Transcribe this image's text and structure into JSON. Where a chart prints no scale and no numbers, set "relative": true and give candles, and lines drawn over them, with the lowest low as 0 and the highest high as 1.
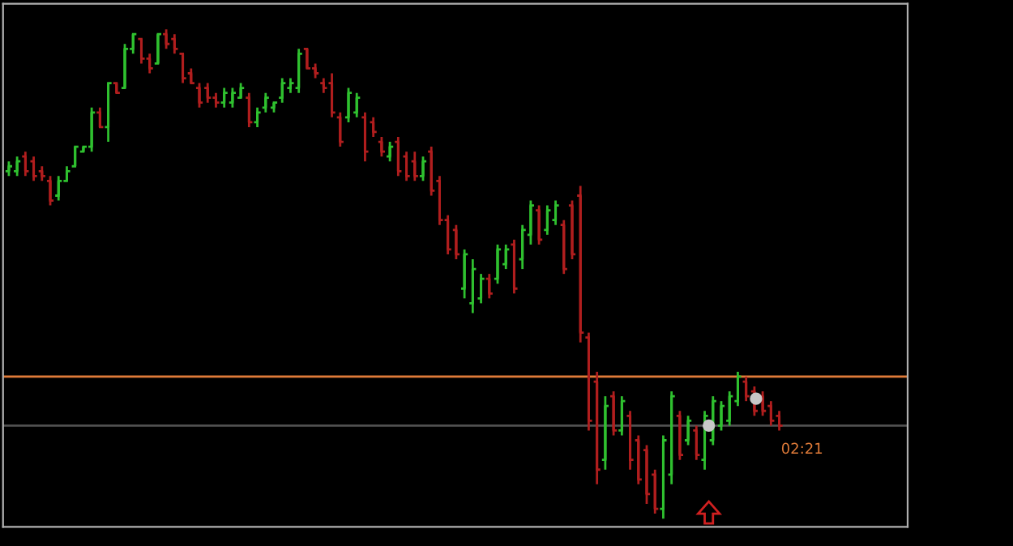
{
  "chart_data": {
    "type": "candlestick",
    "relative": true,
    "grid": false,
    "categories": [
      null,
      null,
      null,
      null,
      null,
      null,
      null,
      null,
      null,
      null,
      null,
      null,
      null,
      null,
      null,
      null,
      null,
      null,
      null,
      null,
      null,
      null,
      null,
      null,
      null,
      null,
      null,
      null,
      null,
      null,
      null,
      null,
      null,
      null,
      null,
      null,
      null,
      null,
      null,
      null,
      null,
      null,
      null,
      null,
      null,
      null,
      null,
      null,
      null,
      null,
      null,
      null,
      null,
      null,
      null,
      null,
      null,
      null,
      null,
      null,
      null,
      null,
      null,
      null,
      null,
      null,
      null,
      null,
      null,
      null,
      null,
      null,
      null,
      null,
      null,
      null,
      null,
      null,
      null,
      null,
      null,
      null,
      null,
      null,
      null,
      null,
      null,
      null,
      null,
      null,
      null,
      null,
      null,
      null
    ],
    "ohlc": [
      [
        0.71,
        0.73,
        0.7,
        0.72
      ],
      [
        0.71,
        0.74,
        0.7,
        0.73
      ],
      [
        0.74,
        0.75,
        0.7,
        0.71
      ],
      [
        0.73,
        0.74,
        0.69,
        0.7
      ],
      [
        0.71,
        0.72,
        0.69,
        0.7
      ],
      [
        0.69,
        0.7,
        0.64,
        0.65
      ],
      [
        0.66,
        0.7,
        0.65,
        0.69
      ],
      [
        0.69,
        0.72,
        0.69,
        0.71
      ],
      [
        0.72,
        0.76,
        0.72,
        0.76
      ],
      [
        0.75,
        0.76,
        0.75,
        0.76
      ],
      [
        0.76,
        0.84,
        0.75,
        0.83
      ],
      [
        0.83,
        0.84,
        0.8,
        0.8
      ],
      [
        0.8,
        0.89,
        0.77,
        0.89
      ],
      [
        0.89,
        0.89,
        0.87,
        0.87
      ],
      [
        0.88,
        0.97,
        0.88,
        0.96
      ],
      [
        0.96,
        0.99,
        0.95,
        0.99
      ],
      [
        0.98,
        0.98,
        0.93,
        0.94
      ],
      [
        0.94,
        0.95,
        0.91,
        0.92
      ],
      [
        0.93,
        0.99,
        0.93,
        0.99
      ],
      [
        0.99,
        1.0,
        0.96,
        0.97
      ],
      [
        0.98,
        0.99,
        0.95,
        0.96
      ],
      [
        0.95,
        0.95,
        0.89,
        0.9
      ],
      [
        0.91,
        0.92,
        0.89,
        0.89
      ],
      [
        0.88,
        0.89,
        0.84,
        0.85
      ],
      [
        0.88,
        0.89,
        0.85,
        0.86
      ],
      [
        0.86,
        0.87,
        0.84,
        0.85
      ],
      [
        0.85,
        0.88,
        0.84,
        0.87
      ],
      [
        0.85,
        0.88,
        0.84,
        0.87
      ],
      [
        0.86,
        0.89,
        0.86,
        0.88
      ],
      [
        0.86,
        0.87,
        0.8,
        0.81
      ],
      [
        0.81,
        0.84,
        0.8,
        0.83
      ],
      [
        0.84,
        0.87,
        0.83,
        0.86
      ],
      [
        0.84,
        0.85,
        0.83,
        0.85
      ],
      [
        0.86,
        0.9,
        0.85,
        0.89
      ],
      [
        0.88,
        0.9,
        0.87,
        0.89
      ],
      [
        0.88,
        0.96,
        0.87,
        0.95
      ],
      [
        0.96,
        0.96,
        0.92,
        0.92
      ],
      [
        0.92,
        0.93,
        0.9,
        0.91
      ],
      [
        0.89,
        0.9,
        0.87,
        0.88
      ],
      [
        0.89,
        0.91,
        0.82,
        0.83
      ],
      [
        0.82,
        0.83,
        0.76,
        0.77
      ],
      [
        0.82,
        0.88,
        0.81,
        0.87
      ],
      [
        0.83,
        0.87,
        0.82,
        0.86
      ],
      [
        0.82,
        0.83,
        0.73,
        0.75
      ],
      [
        0.81,
        0.82,
        0.78,
        0.79
      ],
      [
        0.77,
        0.78,
        0.74,
        0.75
      ],
      [
        0.74,
        0.77,
        0.73,
        0.76
      ],
      [
        0.77,
        0.78,
        0.7,
        0.71
      ],
      [
        0.74,
        0.75,
        0.69,
        0.7
      ],
      [
        0.73,
        0.75,
        0.69,
        0.7
      ],
      [
        0.7,
        0.74,
        0.69,
        0.73
      ],
      [
        0.75,
        0.76,
        0.66,
        0.67
      ],
      [
        0.69,
        0.7,
        0.6,
        0.61
      ],
      [
        0.61,
        0.62,
        0.54,
        0.55
      ],
      [
        0.59,
        0.6,
        0.53,
        0.54
      ],
      [
        0.47,
        0.55,
        0.45,
        0.54
      ],
      [
        0.44,
        0.53,
        0.42,
        0.51
      ],
      [
        0.45,
        0.5,
        0.44,
        0.49
      ],
      [
        0.49,
        0.5,
        0.45,
        0.46
      ],
      [
        0.49,
        0.56,
        0.48,
        0.55
      ],
      [
        0.52,
        0.56,
        0.51,
        0.55
      ],
      [
        0.56,
        0.57,
        0.46,
        0.47
      ],
      [
        0.53,
        0.6,
        0.51,
        0.59
      ],
      [
        0.58,
        0.65,
        0.56,
        0.64
      ],
      [
        0.63,
        0.64,
        0.56,
        0.57
      ],
      [
        0.59,
        0.64,
        0.58,
        0.63
      ],
      [
        0.61,
        0.65,
        0.6,
        0.64
      ],
      [
        0.6,
        0.61,
        0.5,
        0.51
      ],
      [
        0.64,
        0.65,
        0.53,
        0.54
      ],
      [
        0.66,
        0.68,
        0.36,
        0.38
      ],
      [
        0.37,
        0.38,
        0.18,
        0.2
      ],
      [
        0.28,
        0.3,
        0.07,
        0.1
      ],
      [
        0.12,
        0.25,
        0.1,
        0.23
      ],
      [
        0.25,
        0.26,
        0.17,
        0.18
      ],
      [
        0.18,
        0.25,
        0.17,
        0.24
      ],
      [
        0.21,
        0.22,
        0.1,
        0.12
      ],
      [
        0.16,
        0.17,
        0.07,
        0.08
      ],
      [
        0.14,
        0.15,
        0.03,
        0.05
      ],
      [
        0.09,
        0.1,
        0.01,
        0.02
      ],
      [
        0.02,
        0.17,
        0.0,
        0.16
      ],
      [
        0.09,
        0.26,
        0.07,
        0.25
      ],
      [
        0.21,
        0.22,
        0.12,
        0.13
      ],
      [
        0.16,
        0.21,
        0.15,
        0.2
      ],
      [
        0.18,
        0.19,
        0.12,
        0.13
      ],
      [
        0.12,
        0.22,
        0.1,
        0.21
      ],
      [
        0.16,
        0.25,
        0.15,
        0.24
      ],
      [
        0.19,
        0.24,
        0.18,
        0.23
      ],
      [
        0.2,
        0.26,
        0.19,
        0.25
      ],
      [
        0.24,
        0.3,
        0.23,
        0.29
      ],
      [
        0.28,
        0.29,
        0.24,
        0.25
      ],
      [
        0.26,
        0.27,
        0.21,
        0.22
      ],
      [
        0.25,
        0.26,
        0.21,
        0.22
      ],
      [
        0.23,
        0.24,
        0.19,
        0.2
      ],
      [
        0.21,
        0.22,
        0.18,
        0.19
      ]
    ],
    "colors": [
      "#2fc02f",
      "#2fc02f",
      "#b01e1e",
      "#b01e1e",
      "#b01e1e",
      "#b01e1e",
      "#2fc02f",
      "#2fc02f",
      "#2fc02f",
      "#2fc02f",
      "#2fc02f",
      "#b01e1e",
      "#2fc02f",
      "#b01e1e",
      "#2fc02f",
      "#2fc02f",
      "#b01e1e",
      "#b01e1e",
      "#2fc02f",
      "#b01e1e",
      "#b01e1e",
      "#b01e1e",
      "#b01e1e",
      "#b01e1e",
      "#b01e1e",
      "#b01e1e",
      "#2fc02f",
      "#2fc02f",
      "#2fc02f",
      "#b01e1e",
      "#2fc02f",
      "#2fc02f",
      "#2fc02f",
      "#2fc02f",
      "#2fc02f",
      "#2fc02f",
      "#b01e1e",
      "#b01e1e",
      "#b01e1e",
      "#b01e1e",
      "#b01e1e",
      "#2fc02f",
      "#2fc02f",
      "#b01e1e",
      "#b01e1e",
      "#b01e1e",
      "#2fc02f",
      "#b01e1e",
      "#b01e1e",
      "#b01e1e",
      "#2fc02f",
      "#b01e1e",
      "#b01e1e",
      "#b01e1e",
      "#b01e1e",
      "#2fc02f",
      "#2fc02f",
      "#2fc02f",
      "#b01e1e",
      "#2fc02f",
      "#2fc02f",
      "#b01e1e",
      "#2fc02f",
      "#2fc02f",
      "#b01e1e",
      "#2fc02f",
      "#2fc02f",
      "#b01e1e",
      "#b01e1e",
      "#b01e1e",
      "#b01e1e",
      "#b01e1e",
      "#2fc02f",
      "#b01e1e",
      "#2fc02f",
      "#b01e1e",
      "#b01e1e",
      "#b01e1e",
      "#b01e1e",
      "#2fc02f",
      "#2fc02f",
      "#b01e1e",
      "#2fc02f",
      "#b01e1e",
      "#2fc02f",
      "#2fc02f",
      "#2fc02f",
      "#2fc02f",
      "#2fc02f",
      "#b01e1e",
      "#b01e1e",
      "#b01e1e",
      "#b01e1e",
      "#b01e1e"
    ],
    "ref_lines": [
      {
        "axis": "y",
        "value": 0.29,
        "color": "#e07b39"
      },
      {
        "axis": "y",
        "value": 0.19,
        "color": "#505050"
      }
    ],
    "annotations": [
      "02:21"
    ]
  }
}
